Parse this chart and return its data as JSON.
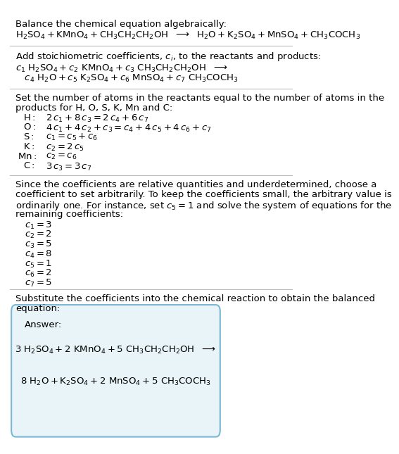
{
  "bg_color": "#ffffff",
  "text_color": "#000000",
  "answer_box_color": "#e8f4f8",
  "answer_box_border": "#7ab8d4",
  "font_size": 9.5,
  "title1": "Balance the chemical equation algebraically:",
  "eq1": "$\\mathrm{H_2SO_4 + KMnO_4 + CH_3CH_2CH_2OH}$  $\\longrightarrow$  $\\mathrm{H_2O + K_2SO_4 + MnSO_4 + CH_3COCH_3}$",
  "title2": "Add stoichiometric coefficients, $c_i$, to the reactants and products:",
  "coeff_line1": "$c_1\\ \\mathrm{H_2SO_4} + c_2\\ \\mathrm{KMnO_4} + c_3\\ \\mathrm{CH_3CH_2CH_2OH}$  $\\longrightarrow$",
  "coeff_line2": "$\\quad c_4\\ \\mathrm{H_2O} + c_5\\ \\mathrm{K_2SO_4} + c_6\\ \\mathrm{MnSO_4} + c_7\\ \\mathrm{CH_3COCH_3}$",
  "title3a": "Set the number of atoms in the reactants equal to the number of atoms in the",
  "title3b": "products for H, O, S, K, Mn and C:",
  "atom_labels": [
    "H:",
    "O:",
    "S:",
    "K:",
    "Mn:",
    "C:"
  ],
  "atom_eqs": [
    "$2\\,c_1 + 8\\,c_3 = 2\\,c_4 + 6\\,c_7$",
    "$4\\,c_1 + 4\\,c_2 + c_3 = c_4 + 4\\,c_5 + 4\\,c_6 + c_7$",
    "$c_1 = c_5 + c_6$",
    "$c_2 = 2\\,c_5$",
    "$c_2 = c_6$",
    "$3\\,c_3 = 3\\,c_7$"
  ],
  "title4a": "Since the coefficients are relative quantities and underdetermined, choose a",
  "title4b": "coefficient to set arbitrarily. To keep the coefficients small, the arbitrary value is",
  "title4c": "ordinarily one. For instance, set $c_5 = 1$ and solve the system of equations for the",
  "title4d": "remaining coefficients:",
  "coeff_values": [
    "$c_1 = 3$",
    "$c_2 = 2$",
    "$c_3 = 5$",
    "$c_4 = 8$",
    "$c_5 = 1$",
    "$c_6 = 2$",
    "$c_7 = 5$"
  ],
  "title5a": "Substitute the coefficients into the chemical reaction to obtain the balanced",
  "title5b": "equation:",
  "answer_label": "Answer:",
  "ans_line1": "$3\\ \\mathrm{H_2SO_4} + 2\\ \\mathrm{KMnO_4} + 5\\ \\mathrm{CH_3CH_2CH_2OH}$  $\\longrightarrow$",
  "ans_line2": "$8\\ \\mathrm{H_2O} + \\mathrm{K_2SO_4} + 2\\ \\mathrm{MnSO_4} + 5\\ \\mathrm{CH_3COCH_3}$"
}
